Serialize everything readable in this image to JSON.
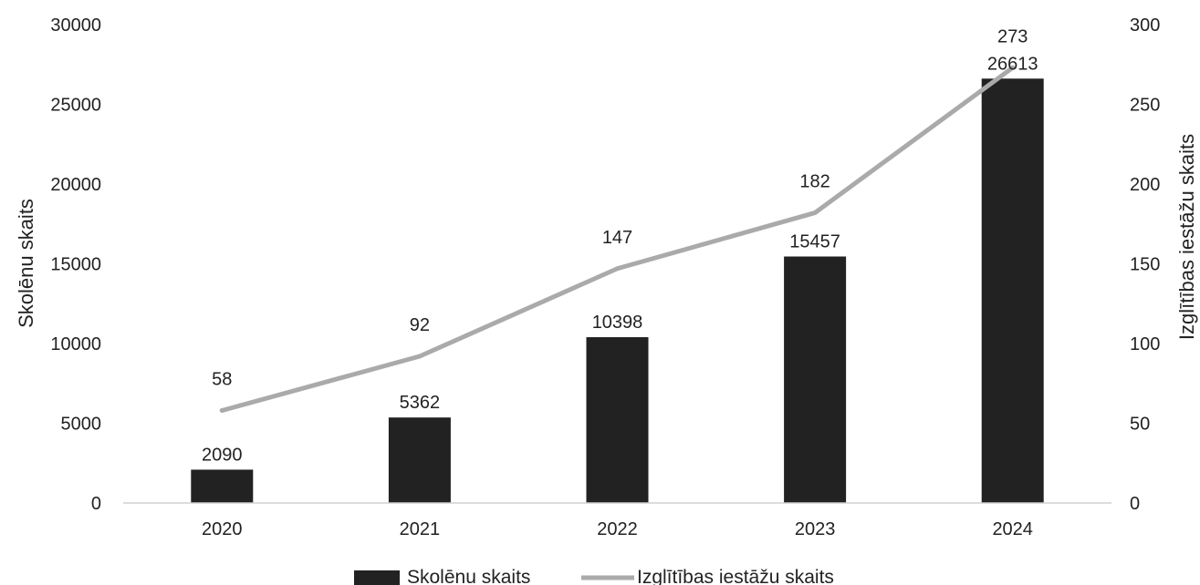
{
  "chart_data": {
    "type": "bar",
    "categories": [
      "2020",
      "2021",
      "2022",
      "2023",
      "2024"
    ],
    "series": [
      {
        "name": "Skolēnu skaits",
        "type": "bar",
        "axis": "left",
        "values": [
          2090,
          5362,
          10398,
          15457,
          26613
        ],
        "labels": [
          "2090",
          "5362",
          "10398",
          "15457",
          "26613"
        ],
        "color": "#222222"
      },
      {
        "name": "Izglītības iestāžu skaits",
        "type": "line",
        "axis": "right",
        "values": [
          58,
          92,
          147,
          182,
          273
        ],
        "labels": [
          "58",
          "92",
          "147",
          "182",
          "273"
        ],
        "color": "#aaaaaa"
      }
    ],
    "ylabel": "Skolēnu skaits",
    "ylabel_right": "Izglītības iestāžu skaits",
    "ylim": [
      0,
      30000
    ],
    "ylim_right": [
      0,
      300
    ],
    "yticks": [
      "0",
      "5000",
      "10000",
      "15000",
      "20000",
      "25000",
      "30000"
    ],
    "yticks_right": [
      "0",
      "50",
      "100",
      "150",
      "200",
      "250",
      "300"
    ],
    "grid": false,
    "legend_position": "bottom"
  }
}
